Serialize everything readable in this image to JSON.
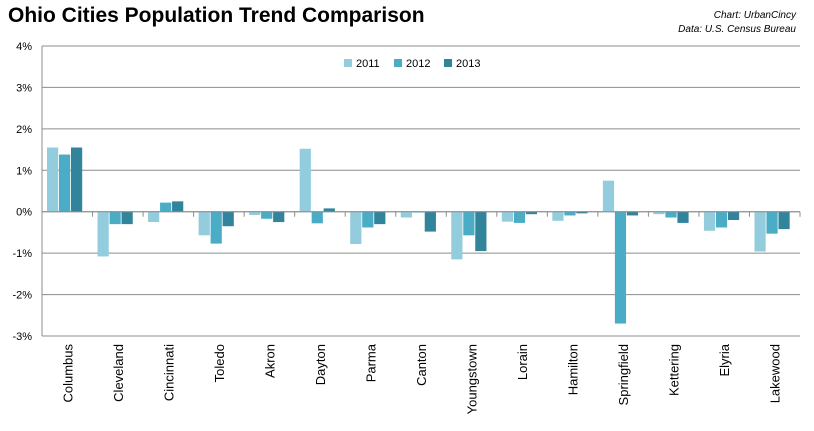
{
  "chart_data": {
    "type": "bar",
    "title": "Ohio Cities Population Trend Comparison",
    "xlabel": "",
    "ylabel": "",
    "ylim": [
      -3,
      4
    ],
    "yticks": [
      "4%",
      "3%",
      "2%",
      "1%",
      "0%",
      "-1%",
      "-2%",
      "-3%"
    ],
    "grid": true,
    "legend": "top-center",
    "categories": [
      "Columbus",
      "Cleveland",
      "Cincinnati",
      "Toledo",
      "Akron",
      "Dayton",
      "Parma",
      "Canton",
      "Youngstown",
      "Lorain",
      "Hamilton",
      "Springfield",
      "Kettering",
      "Elyria",
      "Lakewood"
    ],
    "series": [
      {
        "name": "2011",
        "color": "#93cddd",
        "values": [
          1.55,
          -1.08,
          -0.25,
          -0.57,
          -0.08,
          1.52,
          -0.78,
          -0.14,
          -1.15,
          -0.24,
          -0.22,
          0.75,
          -0.06,
          -0.46,
          -0.96
        ]
      },
      {
        "name": "2012",
        "color": "#4bacc6",
        "values": [
          1.38,
          -0.3,
          0.22,
          -0.77,
          -0.17,
          -0.28,
          -0.38,
          -0.02,
          -0.57,
          -0.27,
          -0.09,
          -2.7,
          -0.14,
          -0.38,
          -0.53
        ]
      },
      {
        "name": "2013",
        "color": "#31849b",
        "values": [
          1.55,
          -0.3,
          0.25,
          -0.35,
          -0.25,
          0.08,
          -0.3,
          -0.48,
          -0.95,
          -0.06,
          -0.04,
          -0.09,
          -0.27,
          -0.2,
          -0.42
        ]
      }
    ]
  },
  "credits": {
    "chart": "Chart: UrbanCincy",
    "data": "Data: U.S. Census Bureau"
  }
}
